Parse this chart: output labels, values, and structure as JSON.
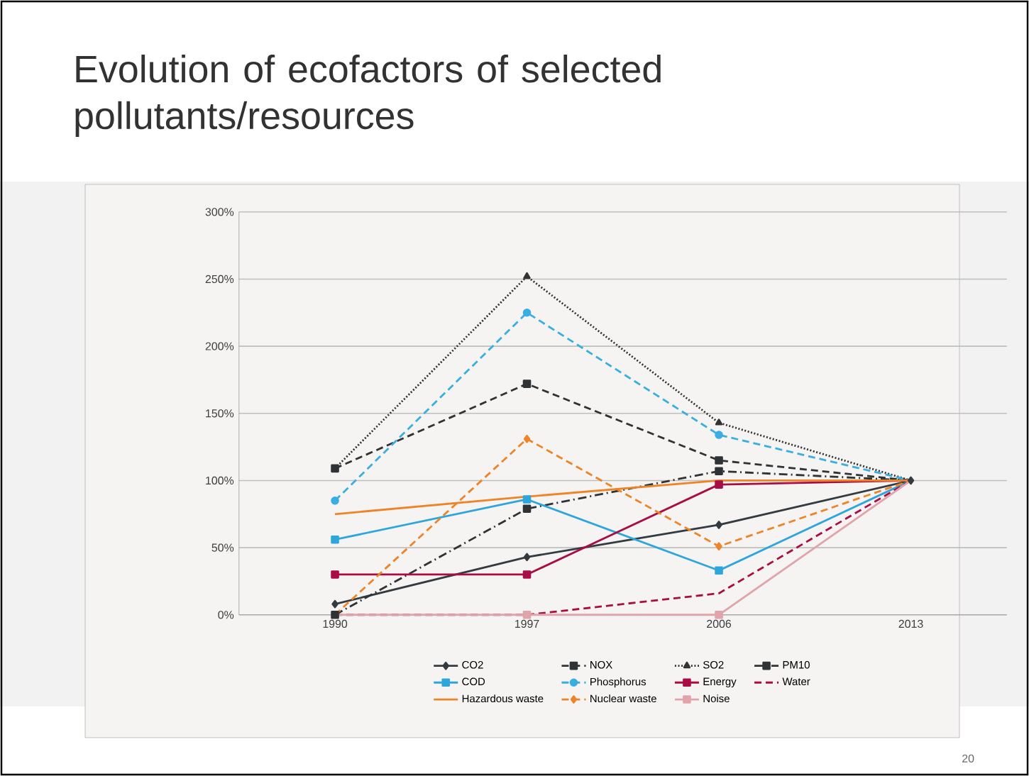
{
  "chart_data": {
    "type": "line",
    "title": "Evolution of ecofactors of selected pollutants/resources",
    "categories": [
      "1990",
      "1997",
      "2006",
      "2013"
    ],
    "ylim": [
      0,
      300
    ],
    "yticks": [
      {
        "value": 0,
        "label": "0%"
      },
      {
        "value": 50,
        "label": "50%"
      },
      {
        "value": 100,
        "label": "100%"
      },
      {
        "value": 150,
        "label": "150%"
      },
      {
        "value": 200,
        "label": "200%"
      },
      {
        "value": 250,
        "label": "250%"
      },
      {
        "value": 300,
        "label": "300%"
      }
    ],
    "grid": "y",
    "legend": "bottom",
    "annotations": [
      "20"
    ],
    "series": [
      {
        "name": "CO2",
        "color": "#333b40",
        "marker": "diamond",
        "line_style": "solid",
        "values": [
          8,
          43,
          67,
          100
        ]
      },
      {
        "name": "NOX",
        "color": "#2f3336",
        "marker": "square",
        "line_style": "dashed",
        "values": [
          109,
          172,
          115,
          100
        ]
      },
      {
        "name": "SO2",
        "color": "#333333",
        "marker": "triangle",
        "line_style": "dotted",
        "values": [
          109,
          252,
          143,
          100
        ]
      },
      {
        "name": "PM10",
        "color": "#2f3336",
        "marker": "square",
        "line_style": "dashdot",
        "values": [
          0,
          79,
          107,
          100
        ]
      },
      {
        "name": "COD",
        "color": "#2ea6dc",
        "marker": "square",
        "line_style": "solid",
        "values": [
          56,
          86,
          33,
          100
        ]
      },
      {
        "name": "Phosphorus",
        "color": "#3aaee0",
        "marker": "circle",
        "line_style": "dashed",
        "values": [
          85,
          225,
          134,
          100
        ]
      },
      {
        "name": "Energy",
        "color": "#a80d45",
        "marker": "square",
        "line_style": "solid",
        "values": [
          30,
          30,
          97,
          100
        ]
      },
      {
        "name": "Water",
        "color": "#a80d45",
        "marker": "none",
        "line_style": "dashed",
        "values": [
          0,
          0,
          16,
          100
        ]
      },
      {
        "name": "Hazardous waste",
        "color": "#ee8428",
        "marker": "none",
        "line_style": "solid",
        "values": [
          75,
          88,
          100,
          100
        ]
      },
      {
        "name": "Nuclear waste",
        "color": "#ee8428",
        "marker": "diamond",
        "line_style": "dashed",
        "values": [
          0,
          131,
          51,
          100
        ]
      },
      {
        "name": "Noise",
        "color": "#e0a4aa",
        "marker": "square",
        "line_style": "solid",
        "values": [
          0,
          0,
          0,
          100
        ]
      }
    ]
  }
}
